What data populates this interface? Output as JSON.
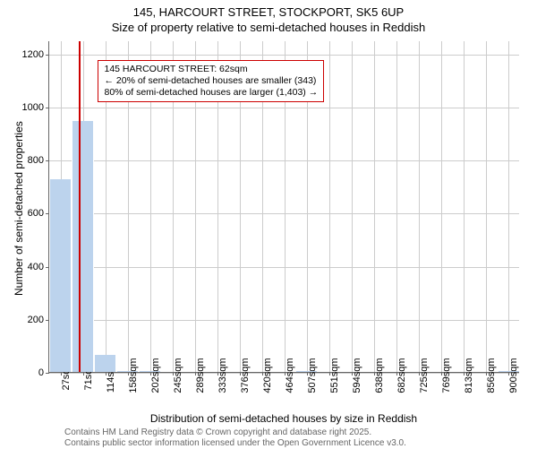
{
  "title": {
    "line1": "145, HARCOURT STREET, STOCKPORT, SK5 6UP",
    "line2": "Size of property relative to semi-detached houses in Reddish",
    "fontsize": 13
  },
  "chart": {
    "type": "histogram",
    "background_color": "#ffffff",
    "grid_color": "#cccccc",
    "axis_color": "#666666",
    "ylabel": "Number of semi-detached properties",
    "xlabel": "Distribution of semi-detached houses by size in Reddish",
    "label_fontsize": 12,
    "tick_fontsize": 11,
    "ylim": [
      0,
      1250
    ],
    "yticks": [
      0,
      200,
      400,
      600,
      800,
      1000,
      1200
    ],
    "xlim": [
      5,
      922
    ],
    "xticks": [
      {
        "v": 27,
        "label": "27sqm"
      },
      {
        "v": 71,
        "label": "71sqm"
      },
      {
        "v": 114,
        "label": "114sqm"
      },
      {
        "v": 158,
        "label": "158sqm"
      },
      {
        "v": 202,
        "label": "202sqm"
      },
      {
        "v": 245,
        "label": "245sqm"
      },
      {
        "v": 289,
        "label": "289sqm"
      },
      {
        "v": 333,
        "label": "333sqm"
      },
      {
        "v": 376,
        "label": "376sqm"
      },
      {
        "v": 420,
        "label": "420sqm"
      },
      {
        "v": 464,
        "label": "464sqm"
      },
      {
        "v": 507,
        "label": "507sqm"
      },
      {
        "v": 551,
        "label": "551sqm"
      },
      {
        "v": 594,
        "label": "594sqm"
      },
      {
        "v": 638,
        "label": "638sqm"
      },
      {
        "v": 682,
        "label": "682sqm"
      },
      {
        "v": 725,
        "label": "725sqm"
      },
      {
        "v": 769,
        "label": "769sqm"
      },
      {
        "v": 813,
        "label": "813sqm"
      },
      {
        "v": 856,
        "label": "856sqm"
      },
      {
        "v": 900,
        "label": "900sqm"
      }
    ],
    "bars": {
      "color": "#bcd3ed",
      "border_color": "#ffffff",
      "bin_width": 43.6,
      "data": [
        {
          "x": 27,
          "count": 725
        },
        {
          "x": 71,
          "count": 945
        },
        {
          "x": 114,
          "count": 65
        },
        {
          "x": 158,
          "count": 5
        },
        {
          "x": 202,
          "count": 2
        },
        {
          "x": 245,
          "count": 0
        },
        {
          "x": 289,
          "count": 0
        },
        {
          "x": 333,
          "count": 0
        },
        {
          "x": 376,
          "count": 0
        },
        {
          "x": 420,
          "count": 0
        },
        {
          "x": 464,
          "count": 0
        },
        {
          "x": 507,
          "count": 2
        },
        {
          "x": 551,
          "count": 0
        },
        {
          "x": 594,
          "count": 0
        },
        {
          "x": 638,
          "count": 0
        },
        {
          "x": 682,
          "count": 0
        },
        {
          "x": 725,
          "count": 0
        },
        {
          "x": 769,
          "count": 0
        },
        {
          "x": 813,
          "count": 0
        },
        {
          "x": 856,
          "count": 0
        },
        {
          "x": 900,
          "count": 2
        }
      ]
    },
    "marker": {
      "x": 62,
      "color": "#cc0000",
      "width": 2
    },
    "annotation": {
      "border_color": "#cc0000",
      "background": "#ffffff",
      "fontsize": 10.5,
      "x_data": 100,
      "y_data": 1180,
      "lines": [
        "145 HARCOURT STREET: 62sqm",
        "← 20% of semi-detached houses are smaller (343)",
        "80% of semi-detached houses are larger (1,403) →"
      ]
    }
  },
  "footer": {
    "color": "#666666",
    "fontsize": 10,
    "lines": [
      "Contains HM Land Registry data © Crown copyright and database right 2025.",
      "Contains public sector information licensed under the Open Government Licence v3.0."
    ]
  }
}
